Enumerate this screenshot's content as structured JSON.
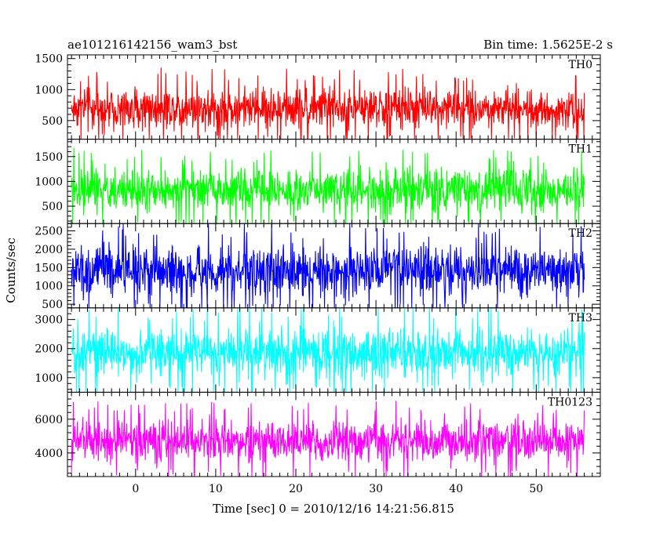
{
  "chart_data": {
    "type": "line",
    "title": "ae101216142156_wam3_bst",
    "bin_time_label": "Bin time: 1.5625E-2 s",
    "xlabel": "Time [sec] 0 = 2010/12/16 14:21:56.815",
    "ylabel": "Counts/sec",
    "xlim": [
      -8.5,
      58
    ],
    "x_range": [
      -8,
      56
    ],
    "x_ticks": [
      0,
      10,
      20,
      30,
      40,
      50
    ],
    "x_tick_labels": [
      "0",
      "10",
      "20",
      "30",
      "40",
      "50"
    ],
    "grid": false,
    "panels": [
      {
        "name": "TH0",
        "color": "#ff0000",
        "ylim": [
          200,
          1560
        ],
        "y_ticks": [
          500,
          1000,
          1500
        ],
        "y_tick_labels": [
          "500",
          "1000",
          "1500"
        ],
        "mean": 700,
        "spread": 165,
        "min": 190,
        "max": 1560
      },
      {
        "name": "TH1",
        "color": "#00ff00",
        "ylim": [
          150,
          1850
        ],
        "y_ticks": [
          500,
          1000,
          1500
        ],
        "y_tick_labels": [
          "500",
          "1000",
          "1500"
        ],
        "mean": 820,
        "spread": 215,
        "min": 150,
        "max": 1850
      },
      {
        "name": "TH2",
        "color": "#0000ff",
        "ylim": [
          400,
          2700
        ],
        "y_ticks": [
          500,
          1000,
          1500,
          2000,
          2500
        ],
        "y_tick_labels": [
          "500",
          "1000",
          "1500",
          "2000",
          "2500"
        ],
        "mean": 1400,
        "spread": 340,
        "min": 400,
        "max": 2700
      },
      {
        "name": "TH3",
        "color": "#00ffff",
        "ylim": [
          500,
          3400
        ],
        "y_ticks": [
          1000,
          2000,
          3000
        ],
        "y_tick_labels": [
          "1000",
          "2000",
          "3000"
        ],
        "mean": 1850,
        "spread": 420,
        "min": 500,
        "max": 3400
      },
      {
        "name": "TH0123",
        "color": "#ff00ff",
        "ylim": [
          2600,
          7600
        ],
        "y_ticks": [
          4000,
          6000
        ],
        "y_tick_labels": [
          "4000",
          "6000"
        ],
        "mean": 4700,
        "spread": 600,
        "min": 2600,
        "max": 7600
      }
    ]
  }
}
